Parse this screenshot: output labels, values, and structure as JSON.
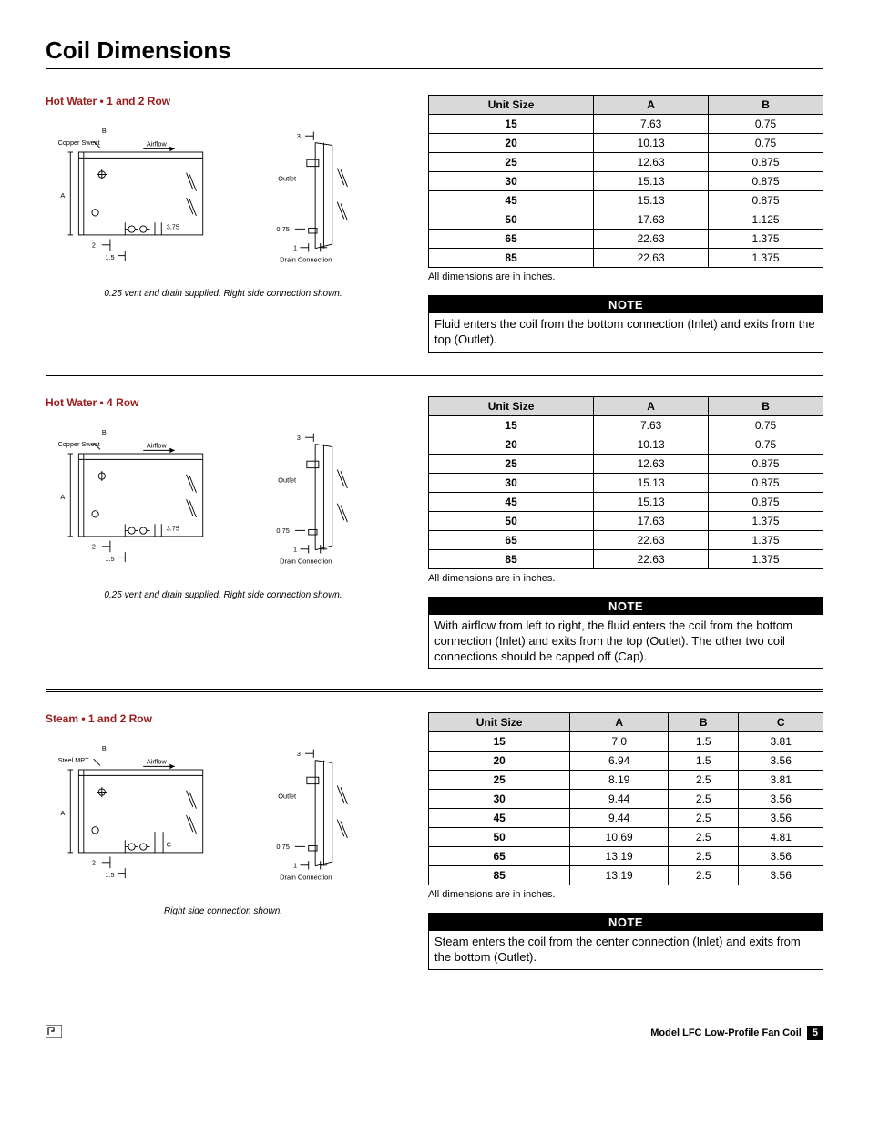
{
  "page_title": "Coil Dimensions",
  "sections": [
    {
      "subhead": "Hot Water • 1 and 2 Row",
      "diagram": {
        "type": "coil-hotwater",
        "labels": {
          "b": "B",
          "copper": "Copper Sweat",
          "airflow": "Airflow",
          "a": "A",
          "d375": "3.75",
          "d2": "2",
          "d15": "1.5",
          "d3": "3",
          "outlet": "Outlet",
          "d075": "0.75",
          "d1": "1",
          "drain": "Drain Connection"
        }
      },
      "caption": "0.25 vent and drain supplied. Right side connection shown.",
      "table": {
        "columns": [
          "Unit Size",
          "A",
          "B"
        ],
        "rows": [
          [
            "15",
            "7.63",
            "0.75"
          ],
          [
            "20",
            "10.13",
            "0.75"
          ],
          [
            "25",
            "12.63",
            "0.875"
          ],
          [
            "30",
            "15.13",
            "0.875"
          ],
          [
            "45",
            "15.13",
            "0.875"
          ],
          [
            "50",
            "17.63",
            "1.125"
          ],
          [
            "65",
            "22.63",
            "1.375"
          ],
          [
            "85",
            "22.63",
            "1.375"
          ]
        ]
      },
      "table_note": "All dimensions are in inches.",
      "note_header": "NOTE",
      "note_body": "Fluid enters the coil from the bottom connection (Inlet) and exits from the top (Outlet)."
    },
    {
      "subhead": "Hot Water • 4 Row",
      "diagram": {
        "type": "coil-hotwater",
        "labels": {
          "b": "B",
          "copper": "Copper Sweat",
          "airflow": "Airflow",
          "a": "A",
          "d375": "3.75",
          "d2": "2",
          "d15": "1.5",
          "d3": "3",
          "outlet": "Outlet",
          "d075": "0.75",
          "d1": "1",
          "drain": "Drain Connection"
        }
      },
      "caption": "0.25 vent and drain supplied. Right side connection shown.",
      "table": {
        "columns": [
          "Unit Size",
          "A",
          "B"
        ],
        "rows": [
          [
            "15",
            "7.63",
            "0.75"
          ],
          [
            "20",
            "10.13",
            "0.75"
          ],
          [
            "25",
            "12.63",
            "0.875"
          ],
          [
            "30",
            "15.13",
            "0.875"
          ],
          [
            "45",
            "15.13",
            "0.875"
          ],
          [
            "50",
            "17.63",
            "1.375"
          ],
          [
            "65",
            "22.63",
            "1.375"
          ],
          [
            "85",
            "22.63",
            "1.375"
          ]
        ]
      },
      "table_note": "All dimensions are in inches.",
      "note_header": "NOTE",
      "note_body": "With airflow from left to right, the fluid enters the coil from the bottom connection (Inlet) and exits from the top (Outlet). The other two coil connections should be capped off (Cap)."
    },
    {
      "subhead": "Steam • 1 and 2 Row",
      "diagram": {
        "type": "coil-steam",
        "labels": {
          "b": "B",
          "copper": "Steel MPT",
          "airflow": "Airflow",
          "a": "A",
          "c": "C",
          "d2": "2",
          "d15": "1.5",
          "d3": "3",
          "outlet": "Outlet",
          "d075": "0.75",
          "d1": "1",
          "drain": "Drain Connection"
        }
      },
      "caption": "Right side connection shown.",
      "table": {
        "columns": [
          "Unit Size",
          "A",
          "B",
          "C"
        ],
        "rows": [
          [
            "15",
            "7.0",
            "1.5",
            "3.81"
          ],
          [
            "20",
            "6.94",
            "1.5",
            "3.56"
          ],
          [
            "25",
            "8.19",
            "2.5",
            "3.81"
          ],
          [
            "30",
            "9.44",
            "2.5",
            "3.56"
          ],
          [
            "45",
            "9.44",
            "2.5",
            "3.56"
          ],
          [
            "50",
            "10.69",
            "2.5",
            "4.81"
          ],
          [
            "65",
            "13.19",
            "2.5",
            "3.56"
          ],
          [
            "85",
            "13.19",
            "2.5",
            "3.56"
          ]
        ]
      },
      "table_note": "All dimensions are in inches.",
      "note_header": "NOTE",
      "note_body": "Steam enters the coil from the center connection (Inlet) and exits from the bottom (Outlet)."
    }
  ],
  "footer": {
    "model": "Model LFC Low-Profile Fan Coil",
    "page": "5"
  },
  "colors": {
    "brand_red": "#9b1c1c",
    "header_bg": "#d9d9d9",
    "note_bg": "#000000",
    "note_fg": "#ffffff"
  }
}
